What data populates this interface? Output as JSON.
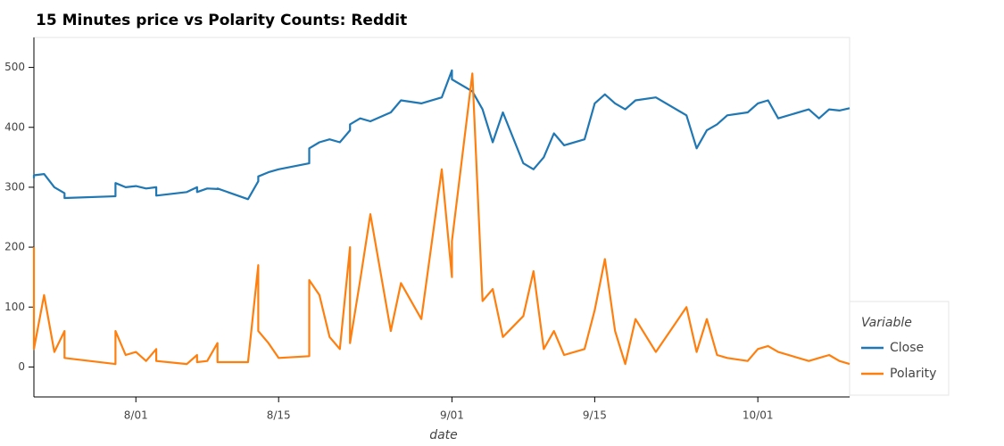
{
  "chart_data": {
    "type": "line",
    "title": "15 Minutes price vs Polarity Counts: Reddit",
    "x_label": "date",
    "legend_title": "Variable",
    "legend": "bottom-right-outside",
    "x": [
      "7/22",
      "7/22",
      "7/23",
      "7/24",
      "7/25",
      "7/25",
      "7/30",
      "7/30",
      "7/31",
      "8/01",
      "8/02",
      "8/03",
      "8/03",
      "8/06",
      "8/07",
      "8/07",
      "8/08",
      "8/09",
      "8/09",
      "8/12",
      "8/13",
      "8/13",
      "8/14",
      "8/15",
      "8/18",
      "8/18",
      "8/19",
      "8/20",
      "8/21",
      "8/22",
      "8/22",
      "8/23",
      "8/24",
      "8/26",
      "8/27",
      "8/29",
      "8/31",
      "9/01",
      "9/01",
      "9/03",
      "9/04",
      "9/05",
      "9/06",
      "9/08",
      "9/09",
      "9/10",
      "9/11",
      "9/12",
      "9/14",
      "9/15",
      "9/16",
      "9/17",
      "9/18",
      "9/19",
      "9/21",
      "9/24",
      "9/25",
      "9/26",
      "9/27",
      "9/28",
      "9/30",
      "10/01",
      "10/02",
      "10/03",
      "10/06",
      "10/07",
      "10/08",
      "10/09",
      "10/10"
    ],
    "series": [
      {
        "name": "Close",
        "color": "#1f77b4",
        "values": [
          315,
          320,
          322,
          300,
          290,
          282,
          285,
          307,
          300,
          302,
          298,
          300,
          286,
          292,
          300,
          292,
          298,
          297,
          298,
          280,
          310,
          318,
          325,
          330,
          340,
          365,
          375,
          380,
          375,
          395,
          405,
          415,
          410,
          425,
          445,
          440,
          450,
          495,
          480,
          460,
          430,
          375,
          425,
          340,
          330,
          350,
          390,
          370,
          380,
          440,
          455,
          440,
          430,
          445,
          450,
          420,
          365,
          395,
          405,
          420,
          425,
          440,
          445,
          415,
          430,
          415,
          430,
          428,
          432
        ]
      },
      {
        "name": "Polarity",
        "color": "#ff7f0e",
        "values": [
          200,
          30,
          120,
          25,
          60,
          15,
          5,
          60,
          20,
          25,
          10,
          30,
          10,
          5,
          20,
          8,
          10,
          40,
          8,
          8,
          170,
          60,
          40,
          15,
          18,
          145,
          120,
          50,
          30,
          200,
          40,
          145,
          255,
          60,
          140,
          80,
          330,
          150,
          210,
          490,
          110,
          130,
          50,
          85,
          160,
          30,
          60,
          20,
          30,
          95,
          180,
          60,
          5,
          80,
          25,
          100,
          25,
          80,
          20,
          15,
          10,
          30,
          35,
          25,
          10,
          15,
          20,
          10,
          5
        ]
      }
    ],
    "xlim": [
      "7/22",
      "10/10"
    ],
    "xticks": [
      "8/01",
      "8/15",
      "9/01",
      "9/15",
      "10/01"
    ],
    "ylim": [
      -50,
      550
    ],
    "yticks": [
      0,
      100,
      200,
      300,
      400,
      500
    ],
    "grid": false
  }
}
